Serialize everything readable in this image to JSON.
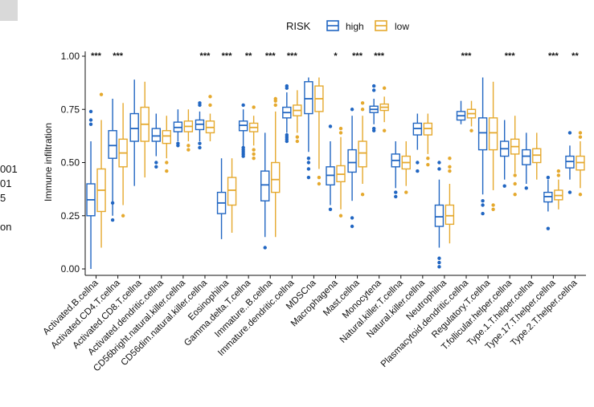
{
  "left_fragments": [
    "001",
    "01",
    "5",
    "on"
  ],
  "colors": {
    "high": "#2166c2",
    "low": "#e5a92e",
    "axis": "#111111"
  },
  "chart_data": {
    "type": "boxplot",
    "title": "",
    "xlabel": "",
    "ylabel": "Immune infiltration",
    "ylim": [
      0,
      1
    ],
    "yticks": [
      "0.00",
      "0.25",
      "0.50",
      "0.75",
      "1.00"
    ],
    "legend": {
      "title": "RISK",
      "entries": [
        "high",
        "low"
      ],
      "position": "top"
    },
    "categories": [
      "Activated.B.cellna",
      "Activated.CD4.T.cellna",
      "Activated.CD8.T.cellna",
      "Activated.dendritic.cellna",
      "CD56bright.natural.killer.cellna",
      "CD56dim.natural.killer.cellna",
      "Eosinophilna",
      "Gamma.delta.T.cellna",
      "Immature..B.cellna",
      "Immature.dendritic.cellna",
      "MDSCna",
      "Macrophagena",
      "Mast.cellna",
      "Monocytena",
      "Natural.killer.T.cellna",
      "Natural.killer.cellna",
      "Neutrophilna",
      "Plasmacytoid.dendritic.cellna",
      "Regulatory.T.cellna",
      "T.follicular.helper.cellna",
      "Type.1.T.helper.cellna",
      "Type.17.T.helper.cellna",
      "Type.2.T.helper.cellna"
    ],
    "significance": [
      "***",
      "***",
      "",
      "",
      "",
      "***",
      "***",
      "**",
      "***",
      "***",
      "",
      "*",
      "***",
      "***",
      "",
      "",
      "",
      "***",
      "",
      "***",
      "",
      "***",
      "**"
    ],
    "series": [
      {
        "name": "high",
        "boxes": [
          {
            "min": 0.0,
            "q1": 0.25,
            "median": 0.325,
            "q3": 0.4,
            "max": 0.6,
            "outliers": [
              0.74,
              0.7,
              0.68
            ]
          },
          {
            "min": 0.25,
            "q1": 0.52,
            "median": 0.58,
            "q3": 0.65,
            "max": 0.8,
            "outliers": [
              0.23,
              0.31
            ]
          },
          {
            "min": 0.39,
            "q1": 0.6,
            "median": 0.66,
            "q3": 0.73,
            "max": 0.89,
            "outliers": []
          },
          {
            "min": 0.53,
            "q1": 0.6,
            "median": 0.625,
            "q3": 0.66,
            "max": 0.73,
            "outliers": [
              0.5,
              0.48
            ]
          },
          {
            "min": 0.6,
            "q1": 0.645,
            "median": 0.665,
            "q3": 0.69,
            "max": 0.75,
            "outliers": [
              0.58,
              0.59
            ]
          },
          {
            "min": 0.6,
            "q1": 0.655,
            "median": 0.68,
            "q3": 0.7,
            "max": 0.74,
            "outliers": [
              0.57,
              0.59,
              0.77,
              0.78
            ]
          },
          {
            "min": 0.14,
            "q1": 0.26,
            "median": 0.31,
            "q3": 0.36,
            "max": 0.52,
            "outliers": []
          },
          {
            "min": 0.57,
            "q1": 0.65,
            "median": 0.675,
            "q3": 0.695,
            "max": 0.75,
            "outliers": [
              0.53,
              0.54,
              0.55,
              0.56,
              0.57,
              0.77
            ]
          },
          {
            "min": 0.15,
            "q1": 0.32,
            "median": 0.395,
            "q3": 0.46,
            "max": 0.64,
            "outliers": [
              0.1
            ]
          },
          {
            "min": 0.64,
            "q1": 0.71,
            "median": 0.735,
            "q3": 0.76,
            "max": 0.83,
            "outliers": [
              0.6,
              0.61,
              0.62,
              0.63,
              0.85,
              0.86
            ]
          },
          {
            "min": 0.55,
            "q1": 0.73,
            "median": 0.8,
            "q3": 0.88,
            "max": 0.9,
            "outliers": [
              0.43,
              0.47,
              0.5,
              0.52
            ]
          },
          {
            "min": 0.3,
            "q1": 0.395,
            "median": 0.44,
            "q3": 0.48,
            "max": 0.6,
            "outliers": [
              0.28,
              0.67
            ]
          },
          {
            "min": 0.32,
            "q1": 0.455,
            "median": 0.5,
            "q3": 0.56,
            "max": 0.72,
            "outliers": [
              0.2,
              0.24,
              0.75
            ]
          },
          {
            "min": 0.68,
            "q1": 0.735,
            "median": 0.75,
            "q3": 0.765,
            "max": 0.8,
            "outliers": [
              0.65,
              0.66,
              0.84,
              0.86
            ]
          },
          {
            "min": 0.38,
            "q1": 0.48,
            "median": 0.51,
            "q3": 0.54,
            "max": 0.6,
            "outliers": [
              0.34,
              0.36
            ]
          },
          {
            "min": 0.56,
            "q1": 0.63,
            "median": 0.66,
            "q3": 0.685,
            "max": 0.73,
            "outliers": [
              0.46,
              0.5
            ]
          },
          {
            "min": 0.1,
            "q1": 0.2,
            "median": 0.245,
            "q3": 0.3,
            "max": 0.42,
            "outliers": [
              0.01,
              0.03,
              0.05,
              0.47,
              0.5
            ]
          },
          {
            "min": 0.68,
            "q1": 0.7,
            "median": 0.72,
            "q3": 0.74,
            "max": 0.79,
            "outliers": []
          },
          {
            "min": 0.35,
            "q1": 0.56,
            "median": 0.64,
            "q3": 0.71,
            "max": 0.9,
            "outliers": [
              0.26,
              0.3,
              0.32
            ]
          },
          {
            "min": 0.42,
            "q1": 0.53,
            "median": 0.565,
            "q3": 0.6,
            "max": 0.7,
            "outliers": [
              0.39
            ]
          },
          {
            "min": 0.4,
            "q1": 0.49,
            "median": 0.53,
            "q3": 0.56,
            "max": 0.64,
            "outliers": [
              0.38
            ]
          },
          {
            "min": 0.27,
            "q1": 0.315,
            "median": 0.34,
            "q3": 0.36,
            "max": 0.42,
            "outliers": [
              0.19,
              0.43
            ]
          },
          {
            "min": 0.42,
            "q1": 0.475,
            "median": 0.505,
            "q3": 0.53,
            "max": 0.58,
            "outliers": [
              0.36,
              0.64
            ]
          }
        ]
      },
      {
        "name": "low",
        "boxes": [
          {
            "min": 0.1,
            "q1": 0.27,
            "median": 0.37,
            "q3": 0.47,
            "max": 0.7,
            "outliers": [
              0.82
            ]
          },
          {
            "min": 0.3,
            "q1": 0.48,
            "median": 0.545,
            "q3": 0.61,
            "max": 0.78,
            "outliers": [
              0.25
            ]
          },
          {
            "min": 0.43,
            "q1": 0.6,
            "median": 0.68,
            "q3": 0.76,
            "max": 0.88,
            "outliers": []
          },
          {
            "min": 0.52,
            "q1": 0.59,
            "median": 0.625,
            "q3": 0.65,
            "max": 0.72,
            "outliers": [
              0.5,
              0.46
            ]
          },
          {
            "min": 0.6,
            "q1": 0.645,
            "median": 0.67,
            "q3": 0.695,
            "max": 0.75,
            "outliers": [
              0.56,
              0.58
            ]
          },
          {
            "min": 0.6,
            "q1": 0.64,
            "median": 0.665,
            "q3": 0.695,
            "max": 0.73,
            "outliers": [
              0.77,
              0.81
            ]
          },
          {
            "min": 0.17,
            "q1": 0.3,
            "median": 0.37,
            "q3": 0.43,
            "max": 0.52,
            "outliers": []
          },
          {
            "min": 0.58,
            "q1": 0.645,
            "median": 0.665,
            "q3": 0.685,
            "max": 0.72,
            "outliers": [
              0.52,
              0.54,
              0.56,
              0.76
            ]
          },
          {
            "min": 0.15,
            "q1": 0.36,
            "median": 0.42,
            "q3": 0.5,
            "max": 0.74,
            "outliers": [
              0.77,
              0.79,
              0.8
            ]
          },
          {
            "min": 0.64,
            "q1": 0.72,
            "median": 0.745,
            "q3": 0.77,
            "max": 0.84,
            "outliers": [
              0.6,
              0.62
            ]
          },
          {
            "min": 0.47,
            "q1": 0.74,
            "median": 0.8,
            "q3": 0.86,
            "max": 0.9,
            "outliers": [
              0.4,
              0.43
            ]
          },
          {
            "min": 0.28,
            "q1": 0.41,
            "median": 0.445,
            "q3": 0.485,
            "max": 0.62,
            "outliers": [
              0.25,
              0.64,
              0.66
            ]
          },
          {
            "min": 0.4,
            "q1": 0.48,
            "median": 0.545,
            "q3": 0.6,
            "max": 0.72,
            "outliers": [
              0.35,
              0.75,
              0.78
            ]
          },
          {
            "min": 0.69,
            "q1": 0.745,
            "median": 0.76,
            "q3": 0.775,
            "max": 0.81,
            "outliers": [
              0.65,
              0.85
            ]
          },
          {
            "min": 0.39,
            "q1": 0.47,
            "median": 0.5,
            "q3": 0.53,
            "max": 0.6,
            "outliers": [
              0.36
            ]
          },
          {
            "min": 0.54,
            "q1": 0.63,
            "median": 0.66,
            "q3": 0.685,
            "max": 0.73,
            "outliers": [
              0.49,
              0.52
            ]
          },
          {
            "min": 0.12,
            "q1": 0.21,
            "median": 0.25,
            "q3": 0.3,
            "max": 0.4,
            "outliers": [
              0.46,
              0.48,
              0.52
            ]
          },
          {
            "min": 0.67,
            "q1": 0.71,
            "median": 0.73,
            "q3": 0.75,
            "max": 0.79,
            "outliers": [
              0.65
            ]
          },
          {
            "min": 0.37,
            "q1": 0.56,
            "median": 0.64,
            "q3": 0.71,
            "max": 0.88,
            "outliers": [
              0.28,
              0.3
            ]
          },
          {
            "min": 0.45,
            "q1": 0.54,
            "median": 0.575,
            "q3": 0.61,
            "max": 0.72,
            "outliers": [
              0.35,
              0.4,
              0.44
            ]
          },
          {
            "min": 0.42,
            "q1": 0.5,
            "median": 0.535,
            "q3": 0.565,
            "max": 0.64,
            "outliers": []
          },
          {
            "min": 0.28,
            "q1": 0.325,
            "median": 0.345,
            "q3": 0.37,
            "max": 0.42,
            "outliers": [
              0.44,
              0.46
            ]
          },
          {
            "min": 0.38,
            "q1": 0.465,
            "median": 0.5,
            "q3": 0.53,
            "max": 0.6,
            "outliers": [
              0.35,
              0.62,
              0.64
            ]
          }
        ]
      }
    ]
  }
}
